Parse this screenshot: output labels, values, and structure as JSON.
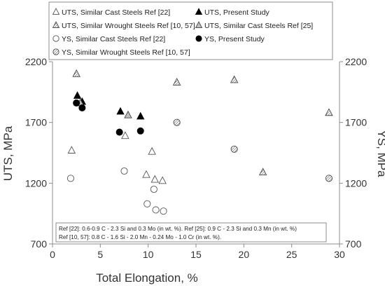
{
  "chart_data": {
    "type": "scatter",
    "xlabel": "Total Elongation, %",
    "ylabel_left": "UTS, MPa",
    "ylabel_right": "YS, MPa",
    "xlim": [
      0,
      30
    ],
    "ylim": [
      700,
      2200
    ],
    "xticks": [
      0,
      5,
      10,
      15,
      20,
      25,
      30
    ],
    "yticks": [
      700,
      1200,
      1700,
      2200
    ],
    "series": [
      {
        "name": "UTS, Similar Cast Steels Ref [22]",
        "marker": "triangle-open",
        "points": [
          [
            2.0,
            1470
          ],
          [
            7.6,
            1590
          ],
          [
            10.4,
            1460
          ],
          [
            9.8,
            1270
          ],
          [
            10.7,
            1230
          ],
          [
            11.5,
            1220
          ]
        ]
      },
      {
        "name": "UTS, Present Study",
        "marker": "triangle-filled",
        "points": [
          [
            2.6,
            1920
          ],
          [
            3.1,
            1870
          ],
          [
            7.1,
            1790
          ],
          [
            9.2,
            1750
          ]
        ]
      },
      {
        "name": "UTS, Similar Wrought Steels Ref [10, 57]",
        "marker": "triangle-hatched",
        "points": [
          [
            2.5,
            2100
          ],
          [
            13.0,
            2030
          ],
          [
            19.0,
            2050
          ],
          [
            28.9,
            1780
          ],
          [
            22.0,
            1290
          ]
        ]
      },
      {
        "name": "UTS, Similar Cast Steels Ref [25]",
        "marker": "triangle-gray",
        "points": [
          [
            2.9,
            1860
          ],
          [
            7.9,
            1760
          ]
        ]
      },
      {
        "name": "YS, Similar Cast Steels Ref [22]",
        "marker": "circle-open",
        "points": [
          [
            1.9,
            1240
          ],
          [
            7.5,
            1300
          ],
          [
            10.6,
            1150
          ],
          [
            9.9,
            1030
          ],
          [
            10.8,
            980
          ],
          [
            11.6,
            970
          ]
        ]
      },
      {
        "name": "YS, Present Study",
        "marker": "circle-filled",
        "points": [
          [
            2.5,
            1860
          ],
          [
            3.1,
            1820
          ],
          [
            7.0,
            1620
          ],
          [
            9.2,
            1630
          ]
        ]
      },
      {
        "name": "YS, Similar Wrought Steels Ref [10, 57]",
        "marker": "circle-hatched",
        "points": [
          [
            13.0,
            1700
          ],
          [
            19.0,
            1480
          ],
          [
            28.9,
            1240
          ]
        ]
      }
    ],
    "legend": {
      "placement": "top",
      "columns": [
        [
          "UTS, Similar Cast Steels Ref [22]",
          "UTS, Similar Wrought Steels Ref [10, 57]",
          "YS, Similar Cast Steels Ref [22]",
          "YS, Similar Wrought Steels Ref [10, 57]"
        ],
        [
          "UTS, Present Study",
          "UTS, Similar Cast Steels Ref [25]",
          "YS, Present Study"
        ]
      ]
    },
    "annotation": {
      "lines": [
        "Ref [22]: 0.6-0.9 C - 2.3 Si and 0.3 Mo (in wt. %). Ref [25]: 0.9 C - 2.3 Si and 0.3 Mn (in wt. %)",
        "Ref [10, 57]: 0.8 C - 1.6 Si - 2.0 Mn - 0.24 Mo - 1.0 Cr (in wt. %)."
      ]
    },
    "grid": false
  }
}
